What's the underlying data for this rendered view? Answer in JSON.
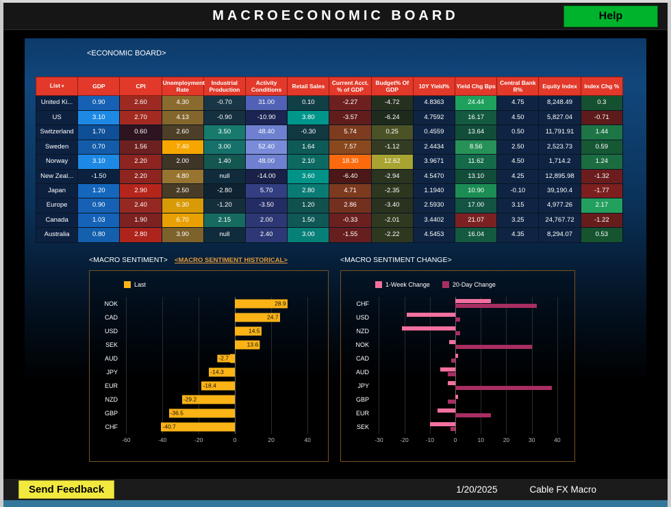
{
  "window": {
    "title": "MACROECONOMIC BOARD",
    "help_label": "Help"
  },
  "board": {
    "label": "<ECONOMIC BOARD>"
  },
  "table": {
    "columns": [
      "List",
      "GDP",
      "CPI",
      "Unemployment Rate",
      "Industrial Production",
      "Activity Conditions",
      "Retail Sales",
      "Current Acct. % of GDP",
      "Budget% Of GDP",
      "10Y Yield%",
      "Yield Chg Bps",
      "Central Bank R%",
      "Equity Index",
      "Index Chg %"
    ],
    "sort_indicator": "▾",
    "rows": [
      {
        "name": "United Ki...",
        "cells": [
          {
            "v": "0.90",
            "bg": "#1661b4"
          },
          {
            "v": "2.60",
            "bg": "#9c2a22"
          },
          {
            "v": "4.30",
            "bg": "#8a6b2e"
          },
          {
            "v": "-0.70",
            "bg": "#183646"
          },
          {
            "v": "31.00",
            "bg": "#5162b6"
          },
          {
            "v": "0.10",
            "bg": "#113f46"
          },
          {
            "v": "-2.27",
            "bg": "#6e2020"
          },
          {
            "v": "-4.72",
            "bg": "#25301f"
          },
          {
            "v": "4.8363",
            "bg": "#0e2442"
          },
          {
            "v": "24.44",
            "bg": "#1da15d"
          },
          {
            "v": "4.75",
            "bg": "#0e2442"
          },
          {
            "v": "8,248.49",
            "bg": "#0e2442"
          },
          {
            "v": "0.3",
            "bg": "#155031"
          }
        ]
      },
      {
        "name": "US",
        "cells": [
          {
            "v": "3.10",
            "bg": "#1e88e5"
          },
          {
            "v": "2.70",
            "bg": "#a32a20"
          },
          {
            "v": "4.13",
            "bg": "#84662d"
          },
          {
            "v": "-0.90",
            "bg": "#15303f"
          },
          {
            "v": "-10.90",
            "bg": "#1b2452"
          },
          {
            "v": "3.80",
            "bg": "#00968b"
          },
          {
            "v": "-3.57",
            "bg": "#611c1c"
          },
          {
            "v": "-6.24",
            "bg": "#1e2a1c"
          },
          {
            "v": "4.7592",
            "bg": "#0e2442"
          },
          {
            "v": "16.17",
            "bg": "#145a40"
          },
          {
            "v": "4.50",
            "bg": "#0e2442"
          },
          {
            "v": "5,827.04",
            "bg": "#0e2442"
          },
          {
            "v": "-0.71",
            "bg": "#5d1b1b"
          }
        ]
      },
      {
        "name": "Switzerland",
        "cells": [
          {
            "v": "1.70",
            "bg": "#0f4f97"
          },
          {
            "v": "0.60",
            "bg": "#2e1420"
          },
          {
            "v": "2.60",
            "bg": "#4c3e27"
          },
          {
            "v": "3.50",
            "bg": "#187a6d"
          },
          {
            "v": "48.40",
            "bg": "#6e80cf"
          },
          {
            "v": "-0.30",
            "bg": "#123841"
          },
          {
            "v": "5.74",
            "bg": "#7d3c1f"
          },
          {
            "v": "0.25",
            "bg": "#4b5226"
          },
          {
            "v": "0.4559",
            "bg": "#0e2442"
          },
          {
            "v": "13.64",
            "bg": "#124d3a"
          },
          {
            "v": "0.50",
            "bg": "#0e2442"
          },
          {
            "v": "11,791.91",
            "bg": "#0e2442"
          },
          {
            "v": "1.44",
            "bg": "#1d7546"
          }
        ]
      },
      {
        "name": "Sweden",
        "cells": [
          {
            "v": "0.70",
            "bg": "#145ca9"
          },
          {
            "v": "1.56",
            "bg": "#6d2020"
          },
          {
            "v": "7.40",
            "bg": "#f7a600"
          },
          {
            "v": "3.00",
            "bg": "#16716a"
          },
          {
            "v": "52.40",
            "bg": "#7a8cd9"
          },
          {
            "v": "1.64",
            "bg": "#0e5a56"
          },
          {
            "v": "7.57",
            "bg": "#8a481e"
          },
          {
            "v": "-1.12",
            "bg": "#333c22"
          },
          {
            "v": "2.4434",
            "bg": "#0e2442"
          },
          {
            "v": "8.56",
            "bg": "#279258"
          },
          {
            "v": "2.50",
            "bg": "#0e2442"
          },
          {
            "v": "2,523.73",
            "bg": "#0e2442"
          },
          {
            "v": "0.59",
            "bg": "#175834"
          }
        ]
      },
      {
        "name": "Norway",
        "cells": [
          {
            "v": "3.10",
            "bg": "#1e88e5"
          },
          {
            "v": "2.20",
            "bg": "#8d2420"
          },
          {
            "v": "2.00",
            "bg": "#3f3526"
          },
          {
            "v": "1.40",
            "bg": "#145650"
          },
          {
            "v": "48.00",
            "bg": "#6e80cf"
          },
          {
            "v": "2.10",
            "bg": "#0d6a62"
          },
          {
            "v": "18.30",
            "bg": "#fd6a0d"
          },
          {
            "v": "12.62",
            "bg": "#a9a431"
          },
          {
            "v": "3.9671",
            "bg": "#0e2442"
          },
          {
            "v": "11.62",
            "bg": "#156a4a"
          },
          {
            "v": "4.50",
            "bg": "#0e2442"
          },
          {
            "v": "1,714.2",
            "bg": "#0e2442"
          },
          {
            "v": "1.24",
            "bg": "#1c6c41"
          }
        ]
      },
      {
        "name": "New Zeal...",
        "cells": [
          {
            "v": "-1.50",
            "bg": "#0a2240"
          },
          {
            "v": "2.20",
            "bg": "#8d2420"
          },
          {
            "v": "4.80",
            "bg": "#977430"
          },
          {
            "v": "null",
            "bg": "#102c3c"
          },
          {
            "v": "-14.00",
            "bg": "#192148"
          },
          {
            "v": "3.60",
            "bg": "#019387"
          },
          {
            "v": "-6.40",
            "bg": "#4c1717"
          },
          {
            "v": "-2.94",
            "bg": "#2a341f"
          },
          {
            "v": "4.5470",
            "bg": "#0e2442"
          },
          {
            "v": "13.10",
            "bg": "#124d3a"
          },
          {
            "v": "4.25",
            "bg": "#0e2442"
          },
          {
            "v": "12,895.98",
            "bg": "#0e2442"
          },
          {
            "v": "-1.32",
            "bg": "#6b1d1d"
          }
        ]
      },
      {
        "name": "Japan",
        "cells": [
          {
            "v": "1.20",
            "bg": "#1567be"
          },
          {
            "v": "2.90",
            "bg": "#b5251b"
          },
          {
            "v": "2.50",
            "bg": "#493c27"
          },
          {
            "v": "-2.80",
            "bg": "#0e2231"
          },
          {
            "v": "5.70",
            "bg": "#333f82"
          },
          {
            "v": "2.80",
            "bg": "#0a7b72"
          },
          {
            "v": "4.71",
            "bg": "#7c3a1f"
          },
          {
            "v": "-2.35",
            "bg": "#2d371f"
          },
          {
            "v": "1.1940",
            "bg": "#0e2442"
          },
          {
            "v": "10.90",
            "bg": "#1b8d54"
          },
          {
            "v": "-0.10",
            "bg": "#0e2442"
          },
          {
            "v": "39,190.4",
            "bg": "#0e2442"
          },
          {
            "v": "-1.77",
            "bg": "#7d1f1f"
          }
        ]
      },
      {
        "name": "Europe",
        "cells": [
          {
            "v": "0.90",
            "bg": "#1661b4"
          },
          {
            "v": "2.40",
            "bg": "#952822"
          },
          {
            "v": "6.30",
            "bg": "#d89a07"
          },
          {
            "v": "-1.20",
            "bg": "#142e3c"
          },
          {
            "v": "-3.50",
            "bg": "#242c64"
          },
          {
            "v": "1.20",
            "bg": "#10504d"
          },
          {
            "v": "2.86",
            "bg": "#74301f"
          },
          {
            "v": "-3.40",
            "bg": "#28321f"
          },
          {
            "v": "2.5930",
            "bg": "#0e2442"
          },
          {
            "v": "17.00",
            "bg": "#135442"
          },
          {
            "v": "3.15",
            "bg": "#0e2442"
          },
          {
            "v": "4,977.26",
            "bg": "#0e2442"
          },
          {
            "v": "2.17",
            "bg": "#23a05e"
          }
        ]
      },
      {
        "name": "Canada",
        "cells": [
          {
            "v": "1.03",
            "bg": "#1563b8"
          },
          {
            "v": "1.90",
            "bg": "#7d2220"
          },
          {
            "v": "6.70",
            "bg": "#e8a003"
          },
          {
            "v": "2.15",
            "bg": "#166a60"
          },
          {
            "v": "2.00",
            "bg": "#2d3773"
          },
          {
            "v": "1.50",
            "bg": "#0f5855"
          },
          {
            "v": "-0.33",
            "bg": "#6b2020"
          },
          {
            "v": "-2.01",
            "bg": "#30391f"
          },
          {
            "v": "3.4402",
            "bg": "#0e2442"
          },
          {
            "v": "21.07",
            "bg": "#7c2121"
          },
          {
            "v": "3.25",
            "bg": "#0e2442"
          },
          {
            "v": "24,767.72",
            "bg": "#0e2442"
          },
          {
            "v": "-1.22",
            "bg": "#671c1c"
          }
        ]
      },
      {
        "name": "Australia",
        "cells": [
          {
            "v": "0.80",
            "bg": "#145fae"
          },
          {
            "v": "2.80",
            "bg": "#ad241c"
          },
          {
            "v": "3.90",
            "bg": "#7e622c"
          },
          {
            "v": "null",
            "bg": "#102c3c"
          },
          {
            "v": "2.40",
            "bg": "#2e3876"
          },
          {
            "v": "3.00",
            "bg": "#078077"
          },
          {
            "v": "-1.55",
            "bg": "#671e1e"
          },
          {
            "v": "-2.22",
            "bg": "#2e381f"
          },
          {
            "v": "4.5453",
            "bg": "#0e2442"
          },
          {
            "v": "16.04",
            "bg": "#145a40"
          },
          {
            "v": "4.35",
            "bg": "#0e2442"
          },
          {
            "v": "8,294.07",
            "bg": "#0e2442"
          },
          {
            "v": "0.53",
            "bg": "#16542f"
          }
        ]
      }
    ]
  },
  "sections": {
    "sentiment_title": "<MACRO SENTIMENT>",
    "sentiment_link": "<MACRO SENTIMENT HISTORICAL>",
    "change_title": "<MACRO SENTIMENT CHANGE>"
  },
  "chart_data": [
    {
      "type": "bar",
      "orientation": "horizontal",
      "title": "<MACRO SENTIMENT>",
      "legend": [
        "Last"
      ],
      "bar_color": "#fbb316",
      "categories": [
        "NOK",
        "CAD",
        "USD",
        "SEK",
        "AUD",
        "JPY",
        "EUR",
        "NZD",
        "GBP",
        "CHF"
      ],
      "values": [
        28.9,
        24.7,
        14.5,
        13.6,
        -2.7,
        -14.3,
        -18.4,
        -29.2,
        -36.5,
        -40.7
      ],
      "value_labels": true,
      "xlim": [
        -62,
        46
      ],
      "xticks": [
        -60,
        -40,
        -20,
        0,
        20,
        40
      ],
      "grid": true,
      "legend_position": "top-left"
    },
    {
      "type": "bar",
      "orientation": "horizontal",
      "title": "<MACRO SENTIMENT CHANGE>",
      "categories": [
        "CHF",
        "USD",
        "NZD",
        "NOK",
        "CAD",
        "AUD",
        "JPY",
        "GBP",
        "EUR",
        "SEK"
      ],
      "series": [
        {
          "name": "1-Week Change",
          "color": "#f2709f",
          "values": [
            14,
            -19,
            -21,
            -2.5,
            1,
            -6,
            -3,
            1,
            -7,
            -10
          ]
        },
        {
          "name": "20-Day Change",
          "color": "#a82e62",
          "values": [
            32,
            2,
            2,
            30,
            -1.5,
            -3,
            38,
            -3,
            14,
            -2
          ]
        }
      ],
      "value_labels": false,
      "xlim": [
        -32,
        43
      ],
      "xticks": [
        -30,
        -20,
        -10,
        0,
        10,
        20,
        30,
        40
      ],
      "grid": true,
      "legend_position": "top-left"
    }
  ],
  "footer": {
    "feedback_label": "Send Feedback",
    "date": "1/20/2025",
    "app_name": "Cable FX Macro"
  },
  "colors": {
    "header_red": "#e2392a",
    "bar_amber": "#fbb316",
    "pink": "#f2709f",
    "magenta": "#a82e62",
    "help_green": "#00b32c",
    "feedback_yellow": "#f2e93f"
  }
}
